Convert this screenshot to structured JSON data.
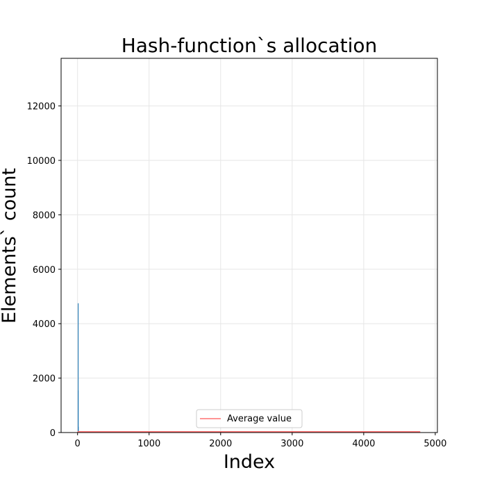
{
  "chart_data": {
    "type": "bar",
    "title": "Hash-function`s allocation",
    "xlabel": "Index",
    "ylabel": "Elements` count",
    "xlim": [
      -230,
      5030
    ],
    "ylim": [
      0,
      13750
    ],
    "xticks": [
      0,
      1000,
      2000,
      3000,
      4000,
      5000
    ],
    "yticks": [
      0,
      2000,
      4000,
      6000,
      8000,
      10000,
      12000
    ],
    "grid": true,
    "legend": {
      "placement": "lower-center",
      "entries": [
        "Average value"
      ]
    },
    "series": [
      {
        "type": "bar",
        "color": "#1f77b4",
        "x": [
          0,
          1,
          2,
          3
        ],
        "values": [
          1550,
          4750,
          210,
          60
        ]
      },
      {
        "name": "Average value",
        "type": "line",
        "color": "#ff7070",
        "x": [
          0,
          4790
        ],
        "values": [
          30,
          30
        ]
      }
    ]
  }
}
